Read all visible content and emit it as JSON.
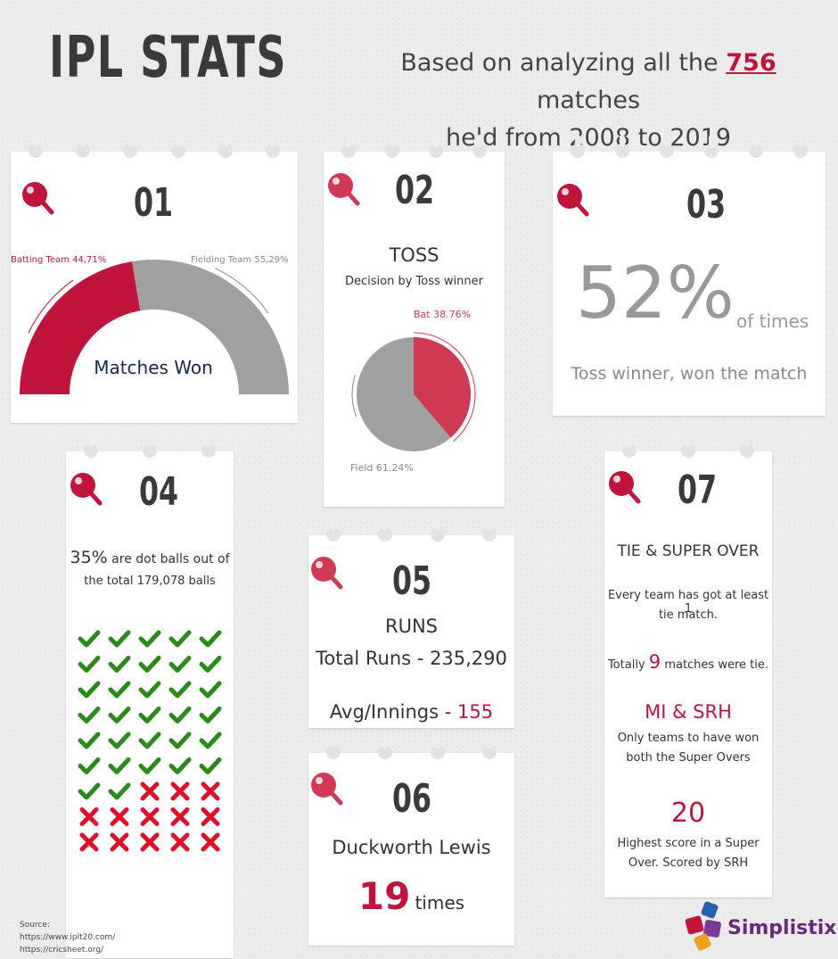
{
  "header": {
    "title": "IPL STATS",
    "subtitle_pre": "Based on analyzing all the",
    "subtitle_num": "756",
    "subtitle_mid": "matches",
    "subtitle_post": "held from 2008 to 2019"
  },
  "cards": {
    "c1": {
      "num": "01",
      "center_label": "Matches Won"
    },
    "c2": {
      "num": "02",
      "title": "TOSS",
      "subtitle": "Decision by Toss winner"
    },
    "c3": {
      "num": "03",
      "big": "52%",
      "suffix": "of times",
      "caption": "Toss winner, won the match"
    },
    "c4": {
      "num": "04",
      "pct": "35%",
      "line1_rest": "are dot balls out of",
      "line2": "the total 179,078 balls"
    },
    "c5": {
      "num": "05",
      "title": "RUNS",
      "total": "Total Runs - 235,290",
      "avg_label": "Avg/Innings -",
      "avg_value": "155"
    },
    "c6": {
      "num": "06",
      "title": "Duckworth Lewis",
      "count": "19",
      "count_suffix": "times"
    },
    "c7": {
      "num": "07",
      "title": "TIE & SUPER OVER",
      "line1": "Every team has got at least 1",
      "line2": "tie match.",
      "tie_pre": "Totally",
      "tie_num": "9",
      "tie_post": "matches were tie.",
      "teams": "MI & SRH",
      "teams_line1": "Only teams to have won",
      "teams_line2": "both the Super Overs",
      "score": "20",
      "score_line1": "Highest score in a Super",
      "score_line2": "Over. Scored by SRH"
    }
  },
  "source": {
    "label": "Source:",
    "url1": "https://www.iplt20.com/",
    "url2": "https://cricsheet.org/"
  },
  "logo": {
    "text": "Simplistix"
  },
  "colors": {
    "accent": "#c0143c",
    "pink": "#d03a55",
    "grey": "#a0a0a0",
    "green": "#2a8a1a",
    "cross": "#e0102a"
  },
  "chart_data": [
    {
      "type": "pie",
      "subtype": "half-donut",
      "labels": [
        "Batting Team 44,71%",
        "Fielding Team 55,29%"
      ],
      "values": [
        44.71,
        55.29
      ],
      "colors": [
        "#c0143c",
        "#a0a0a0"
      ]
    },
    {
      "type": "pie",
      "labels": [
        "Bat 38.76%",
        "Field 61.24%"
      ],
      "values": [
        38.76,
        61.24
      ],
      "colors": [
        "#d03a55",
        "#a0a0a0"
      ]
    },
    {
      "type": "pictogram",
      "rows": 9,
      "cols": 5,
      "filled": 32,
      "total": 45,
      "filled_symbol": "check-icon",
      "empty_symbol": "cross-icon"
    }
  ]
}
